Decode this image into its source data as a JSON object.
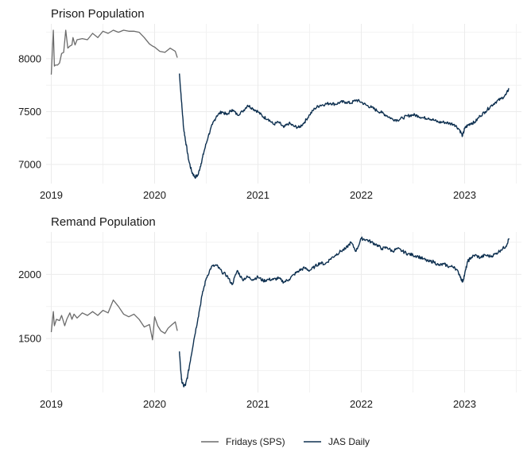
{
  "colors": {
    "sps": "#6b6b6b",
    "jas": "#0e3050",
    "grid": "#ebebeb"
  },
  "legend": {
    "sps": "Fridays (SPS)",
    "jas": "JAS Daily"
  },
  "chart_data": [
    {
      "type": "line",
      "title": "Prison Population",
      "xlabel": "",
      "ylabel": "",
      "xlim": [
        2018.95,
        2023.55
      ],
      "ylim": [
        6820,
        8330
      ],
      "yticks": [
        7000,
        7500,
        8000
      ],
      "xticks": [
        2019,
        2020,
        2021,
        2022,
        2023
      ],
      "series": [
        {
          "name": "Fridays (SPS)",
          "x": [
            2019.0,
            2019.02,
            2019.03,
            2019.04,
            2019.06,
            2019.08,
            2019.1,
            2019.12,
            2019.14,
            2019.16,
            2019.18,
            2019.2,
            2019.21,
            2019.23,
            2019.25,
            2019.3,
            2019.35,
            2019.4,
            2019.45,
            2019.5,
            2019.55,
            2019.6,
            2019.65,
            2019.7,
            2019.75,
            2019.8,
            2019.85,
            2019.9,
            2019.95,
            2019.98,
            2020.0,
            2020.05,
            2020.1,
            2020.15,
            2020.2,
            2020.22
          ],
          "values": [
            7850,
            8270,
            7930,
            7940,
            7940,
            7960,
            8050,
            8060,
            8270,
            8100,
            8120,
            8130,
            8200,
            8130,
            8180,
            8190,
            8180,
            8240,
            8200,
            8260,
            8240,
            8270,
            8250,
            8270,
            8260,
            8260,
            8250,
            8200,
            8140,
            8120,
            8110,
            8070,
            8060,
            8100,
            8070,
            8010
          ]
        },
        {
          "name": "JAS Daily",
          "x": [
            2020.24,
            2020.26,
            2020.28,
            2020.3,
            2020.33,
            2020.36,
            2020.39,
            2020.42,
            2020.45,
            2020.48,
            2020.52,
            2020.56,
            2020.6,
            2020.65,
            2020.7,
            2020.75,
            2020.8,
            2020.85,
            2020.9,
            2020.95,
            2021.0,
            2021.05,
            2021.1,
            2021.15,
            2021.2,
            2021.25,
            2021.3,
            2021.35,
            2021.4,
            2021.45,
            2021.5,
            2021.55,
            2021.6,
            2021.65,
            2021.7,
            2021.75,
            2021.8,
            2021.85,
            2021.9,
            2021.95,
            2022.0,
            2022.05,
            2022.1,
            2022.15,
            2022.2,
            2022.25,
            2022.3,
            2022.35,
            2022.4,
            2022.45,
            2022.5,
            2022.55,
            2022.6,
            2022.65,
            2022.7,
            2022.75,
            2022.8,
            2022.85,
            2022.9,
            2022.95,
            2022.98,
            2023.0,
            2023.03,
            2023.06,
            2023.1,
            2023.15,
            2023.2,
            2023.25,
            2023.3,
            2023.35,
            2023.4,
            2023.43
          ],
          "values": [
            7860,
            7600,
            7350,
            7220,
            7040,
            6930,
            6880,
            6900,
            7010,
            7130,
            7270,
            7380,
            7460,
            7500,
            7470,
            7520,
            7470,
            7500,
            7560,
            7530,
            7500,
            7450,
            7430,
            7380,
            7400,
            7350,
            7390,
            7360,
            7350,
            7400,
            7470,
            7530,
            7560,
            7570,
            7580,
            7570,
            7590,
            7590,
            7580,
            7610,
            7590,
            7560,
            7540,
            7510,
            7490,
            7460,
            7430,
            7420,
            7440,
            7460,
            7470,
            7460,
            7440,
            7440,
            7420,
            7400,
            7400,
            7390,
            7380,
            7330,
            7270,
            7340,
            7370,
            7390,
            7400,
            7460,
            7500,
            7550,
            7590,
            7620,
            7660,
            7720
          ]
        }
      ]
    },
    {
      "type": "line",
      "title": "Remand Population",
      "xlabel": "",
      "ylabel": "",
      "xlim": [
        2018.95,
        2023.55
      ],
      "ylim": [
        1080,
        2330
      ],
      "yticks": [
        1500,
        2000
      ],
      "xticks": [
        2019,
        2020,
        2021,
        2022,
        2023
      ],
      "series": [
        {
          "name": "Fridays (SPS)",
          "x": [
            2019.0,
            2019.02,
            2019.03,
            2019.05,
            2019.08,
            2019.1,
            2019.13,
            2019.15,
            2019.18,
            2019.2,
            2019.22,
            2019.25,
            2019.3,
            2019.35,
            2019.4,
            2019.45,
            2019.5,
            2019.55,
            2019.6,
            2019.65,
            2019.7,
            2019.75,
            2019.8,
            2019.85,
            2019.9,
            2019.95,
            2019.98,
            2020.0,
            2020.03,
            2020.06,
            2020.1,
            2020.13,
            2020.17,
            2020.2,
            2020.22
          ],
          "values": [
            1550,
            1710,
            1600,
            1650,
            1640,
            1680,
            1600,
            1650,
            1700,
            1650,
            1690,
            1660,
            1700,
            1680,
            1710,
            1680,
            1720,
            1700,
            1800,
            1750,
            1690,
            1670,
            1690,
            1650,
            1590,
            1610,
            1490,
            1670,
            1600,
            1560,
            1540,
            1580,
            1610,
            1630,
            1560
          ]
        },
        {
          "name": "JAS Daily",
          "x": [
            2020.24,
            2020.26,
            2020.28,
            2020.3,
            2020.32,
            2020.35,
            2020.38,
            2020.42,
            2020.46,
            2020.5,
            2020.55,
            2020.6,
            2020.65,
            2020.7,
            2020.75,
            2020.8,
            2020.85,
            2020.9,
            2020.95,
            2021.0,
            2021.05,
            2021.1,
            2021.15,
            2021.2,
            2021.25,
            2021.3,
            2021.35,
            2021.4,
            2021.45,
            2021.5,
            2021.55,
            2021.6,
            2021.65,
            2021.7,
            2021.75,
            2021.8,
            2021.85,
            2021.9,
            2021.95,
            2022.0,
            2022.05,
            2022.1,
            2022.15,
            2022.2,
            2022.25,
            2022.3,
            2022.35,
            2022.4,
            2022.45,
            2022.5,
            2022.55,
            2022.6,
            2022.65,
            2022.7,
            2022.75,
            2022.8,
            2022.85,
            2022.9,
            2022.95,
            2022.98,
            2023.0,
            2023.03,
            2023.06,
            2023.1,
            2023.15,
            2023.2,
            2023.25,
            2023.3,
            2023.35,
            2023.4,
            2023.43
          ],
          "values": [
            1400,
            1180,
            1130,
            1140,
            1210,
            1350,
            1490,
            1660,
            1840,
            1970,
            2060,
            2070,
            2020,
            1990,
            1920,
            2030,
            1960,
            1980,
            1960,
            1980,
            1950,
            1960,
            1960,
            1970,
            1940,
            1960,
            2000,
            2030,
            2050,
            2030,
            2060,
            2090,
            2080,
            2120,
            2150,
            2180,
            2200,
            2250,
            2180,
            2280,
            2270,
            2250,
            2230,
            2200,
            2210,
            2180,
            2200,
            2180,
            2160,
            2150,
            2140,
            2120,
            2100,
            2100,
            2070,
            2080,
            2060,
            2060,
            2000,
            1940,
            2000,
            2100,
            2130,
            2150,
            2130,
            2150,
            2140,
            2160,
            2190,
            2220,
            2280
          ]
        }
      ]
    }
  ]
}
